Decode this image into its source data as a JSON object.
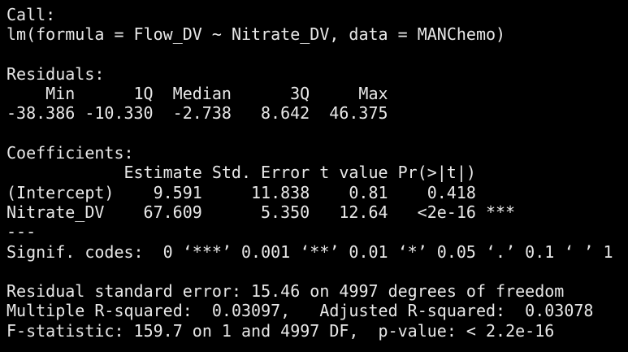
{
  "call": {
    "label": "Call:",
    "formula": "lm(formula = Flow_DV ~ Nitrate_DV, data = MANChemo)"
  },
  "residuals": {
    "label": "Residuals:",
    "headers": [
      "Min",
      "1Q",
      "Median",
      "3Q",
      "Max"
    ],
    "values": [
      "-38.386",
      "-10.330",
      "-2.738",
      "8.642",
      "46.375"
    ]
  },
  "coefficients": {
    "label": "Coefficients:",
    "headers": [
      "Estimate",
      "Std. Error",
      "t value",
      "Pr(>|t|)"
    ],
    "rows": [
      {
        "name": "(Intercept)",
        "cells": [
          "9.591",
          "11.838",
          "0.81",
          "0.418"
        ]
      },
      {
        "name": "Nitrate_DV",
        "cells": [
          "67.609",
          "5.350",
          "12.64",
          "<2e-16"
        ],
        "signif": "***"
      }
    ]
  },
  "separator": "---",
  "signif_codes": "Signif. codes:  0 ‘***’ 0.001 ‘**’ 0.01 ‘*’ 0.05 ‘.’ 0.1 ‘ ’ 1",
  "summary": {
    "residual_se": "Residual standard error: 15.46 on 4997 degrees of freedom",
    "multiple_r2": "Multiple R-squared:  0.03097,",
    "adjusted_r2": "Adjusted R-squared:  0.03078",
    "f_statistic": "F-statistic: 159.7 on 1 and 4997 DF,  p-value: < 2.2e-16"
  }
}
